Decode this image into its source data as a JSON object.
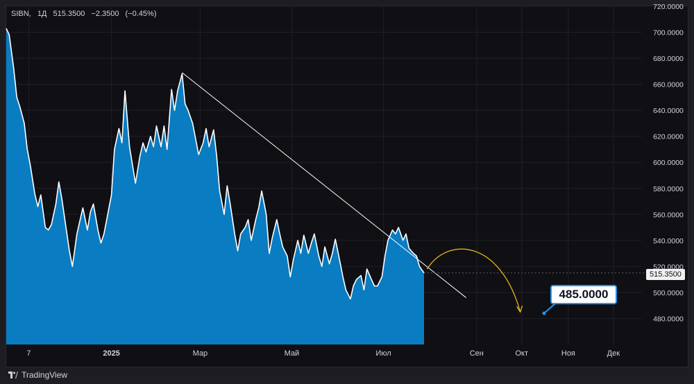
{
  "legend": {
    "symbol": "SIBN",
    "interval": "1Д",
    "price": "515.3500",
    "change": "−2.3500",
    "change_pct": "(−0.45%)"
  },
  "current_price_tag": "515.3500",
  "callout_target": "485.0000",
  "branding": {
    "name": "TradingView"
  },
  "colors": {
    "area_fill": "#0a7cc2",
    "price_line": "#ffffff",
    "trend_line": "#ffffff",
    "forecast_arrow": "#f0c419",
    "callout_border": "#2196f3"
  },
  "chart_data": {
    "type": "area",
    "title": "",
    "xlabel": "",
    "ylabel": "",
    "x_tick_labels": [
      "7",
      "2025",
      "Мар",
      "Май",
      "Июл",
      "Сен",
      "Окт",
      "Ноя",
      "Дек"
    ],
    "y_tick_labels": [
      "720.0000",
      "700.0000",
      "680.0000",
      "660.0000",
      "640.0000",
      "620.0000",
      "600.0000",
      "580.0000",
      "560.0000",
      "540.0000",
      "520.0000",
      "500.0000",
      "480.0000"
    ],
    "ylim": [
      460,
      720
    ],
    "xlim": [
      "2024-10-23",
      "2025-12-20"
    ],
    "x_tick_dates": [
      "2024-11-07",
      "2025-01-01",
      "2025-03-01",
      "2025-05-01",
      "2025-07-01",
      "2025-09-01",
      "2025-10-01",
      "2025-11-01",
      "2025-12-01"
    ],
    "grid": true,
    "series": [
      {
        "points": [
          [
            "2024-10-23",
            703
          ],
          [
            "2024-10-25",
            698
          ],
          [
            "2024-10-28",
            672
          ],
          [
            "2024-10-30",
            650
          ],
          [
            "2024-11-01",
            643
          ],
          [
            "2024-11-04",
            630
          ],
          [
            "2024-11-06",
            610
          ],
          [
            "2024-11-08",
            598
          ],
          [
            "2024-11-11",
            576
          ],
          [
            "2024-11-13",
            566
          ],
          [
            "2024-11-15",
            575
          ],
          [
            "2024-11-18",
            550
          ],
          [
            "2024-11-20",
            548
          ],
          [
            "2024-11-22",
            552
          ],
          [
            "2024-11-25",
            568
          ],
          [
            "2024-11-27",
            585
          ],
          [
            "2024-11-29",
            572
          ],
          [
            "2024-12-02",
            548
          ],
          [
            "2024-12-04",
            532
          ],
          [
            "2024-12-06",
            520
          ],
          [
            "2024-12-09",
            545
          ],
          [
            "2024-12-11",
            555
          ],
          [
            "2024-12-13",
            565
          ],
          [
            "2024-12-16",
            548
          ],
          [
            "2024-12-18",
            562
          ],
          [
            "2024-12-20",
            568
          ],
          [
            "2024-12-23",
            548
          ],
          [
            "2024-12-25",
            538
          ],
          [
            "2024-12-27",
            545
          ],
          [
            "2025-01-01",
            575
          ],
          [
            "2025-01-03",
            610
          ],
          [
            "2025-01-06",
            626
          ],
          [
            "2025-01-08",
            615
          ],
          [
            "2025-01-10",
            655
          ],
          [
            "2025-01-13",
            612
          ],
          [
            "2025-01-15",
            598
          ],
          [
            "2025-01-17",
            584
          ],
          [
            "2025-01-20",
            605
          ],
          [
            "2025-01-22",
            615
          ],
          [
            "2025-01-24",
            608
          ],
          [
            "2025-01-27",
            620
          ],
          [
            "2025-01-29",
            612
          ],
          [
            "2025-01-31",
            628
          ],
          [
            "2025-02-03",
            612
          ],
          [
            "2025-02-05",
            628
          ],
          [
            "2025-02-07",
            610
          ],
          [
            "2025-02-10",
            656
          ],
          [
            "2025-02-12",
            640
          ],
          [
            "2025-02-14",
            655
          ],
          [
            "2025-02-17",
            668
          ],
          [
            "2025-02-19",
            645
          ],
          [
            "2025-02-21",
            640
          ],
          [
            "2025-02-24",
            630
          ],
          [
            "2025-02-26",
            618
          ],
          [
            "2025-02-28",
            606
          ],
          [
            "2025-03-03",
            615
          ],
          [
            "2025-03-05",
            626
          ],
          [
            "2025-03-07",
            612
          ],
          [
            "2025-03-10",
            625
          ],
          [
            "2025-03-12",
            605
          ],
          [
            "2025-03-14",
            578
          ],
          [
            "2025-03-17",
            560
          ],
          [
            "2025-03-19",
            582
          ],
          [
            "2025-03-21",
            568
          ],
          [
            "2025-03-24",
            545
          ],
          [
            "2025-03-26",
            532
          ],
          [
            "2025-03-28",
            545
          ],
          [
            "2025-03-31",
            550
          ],
          [
            "2025-04-02",
            556
          ],
          [
            "2025-04-04",
            540
          ],
          [
            "2025-04-07",
            556
          ],
          [
            "2025-04-09",
            565
          ],
          [
            "2025-04-11",
            578
          ],
          [
            "2025-04-14",
            560
          ],
          [
            "2025-04-16",
            530
          ],
          [
            "2025-04-18",
            542
          ],
          [
            "2025-04-21",
            556
          ],
          [
            "2025-04-23",
            545
          ],
          [
            "2025-04-25",
            535
          ],
          [
            "2025-04-28",
            528
          ],
          [
            "2025-04-30",
            512
          ],
          [
            "2025-05-02",
            525
          ],
          [
            "2025-05-05",
            540
          ],
          [
            "2025-05-07",
            530
          ],
          [
            "2025-05-09",
            544
          ],
          [
            "2025-05-12",
            530
          ],
          [
            "2025-05-14",
            538
          ],
          [
            "2025-05-16",
            545
          ],
          [
            "2025-05-19",
            528
          ],
          [
            "2025-05-21",
            520
          ],
          [
            "2025-05-23",
            535
          ],
          [
            "2025-05-26",
            522
          ],
          [
            "2025-05-28",
            530
          ],
          [
            "2025-05-30",
            541
          ],
          [
            "2025-06-02",
            524
          ],
          [
            "2025-06-04",
            512
          ],
          [
            "2025-06-06",
            502
          ],
          [
            "2025-06-09",
            495
          ],
          [
            "2025-06-11",
            505
          ],
          [
            "2025-06-13",
            510
          ],
          [
            "2025-06-16",
            513
          ],
          [
            "2025-06-18",
            502
          ],
          [
            "2025-06-20",
            518
          ],
          [
            "2025-06-23",
            510
          ],
          [
            "2025-06-25",
            505
          ],
          [
            "2025-06-27",
            505
          ],
          [
            "2025-06-30",
            512
          ],
          [
            "2025-07-02",
            528
          ],
          [
            "2025-07-04",
            540
          ],
          [
            "2025-07-07",
            548
          ],
          [
            "2025-07-09",
            545
          ],
          [
            "2025-07-11",
            550
          ],
          [
            "2025-07-14",
            540
          ],
          [
            "2025-07-16",
            545
          ],
          [
            "2025-07-18",
            534
          ],
          [
            "2025-07-21",
            530
          ],
          [
            "2025-07-23",
            528
          ],
          [
            "2025-07-25",
            520
          ],
          [
            "2025-07-28",
            515
          ]
        ]
      }
    ],
    "annotations": {
      "trend_line": {
        "from": [
          "2025-02-17",
          669
        ],
        "to": [
          "2025-08-25",
          496
        ]
      },
      "forecast_arrow": {
        "from": [
          "2025-07-30",
          518
        ],
        "via": [
          "2025-08-20",
          530
        ],
        "to": [
          "2025-09-30",
          485
        ]
      },
      "target_label": "485.0000"
    }
  }
}
